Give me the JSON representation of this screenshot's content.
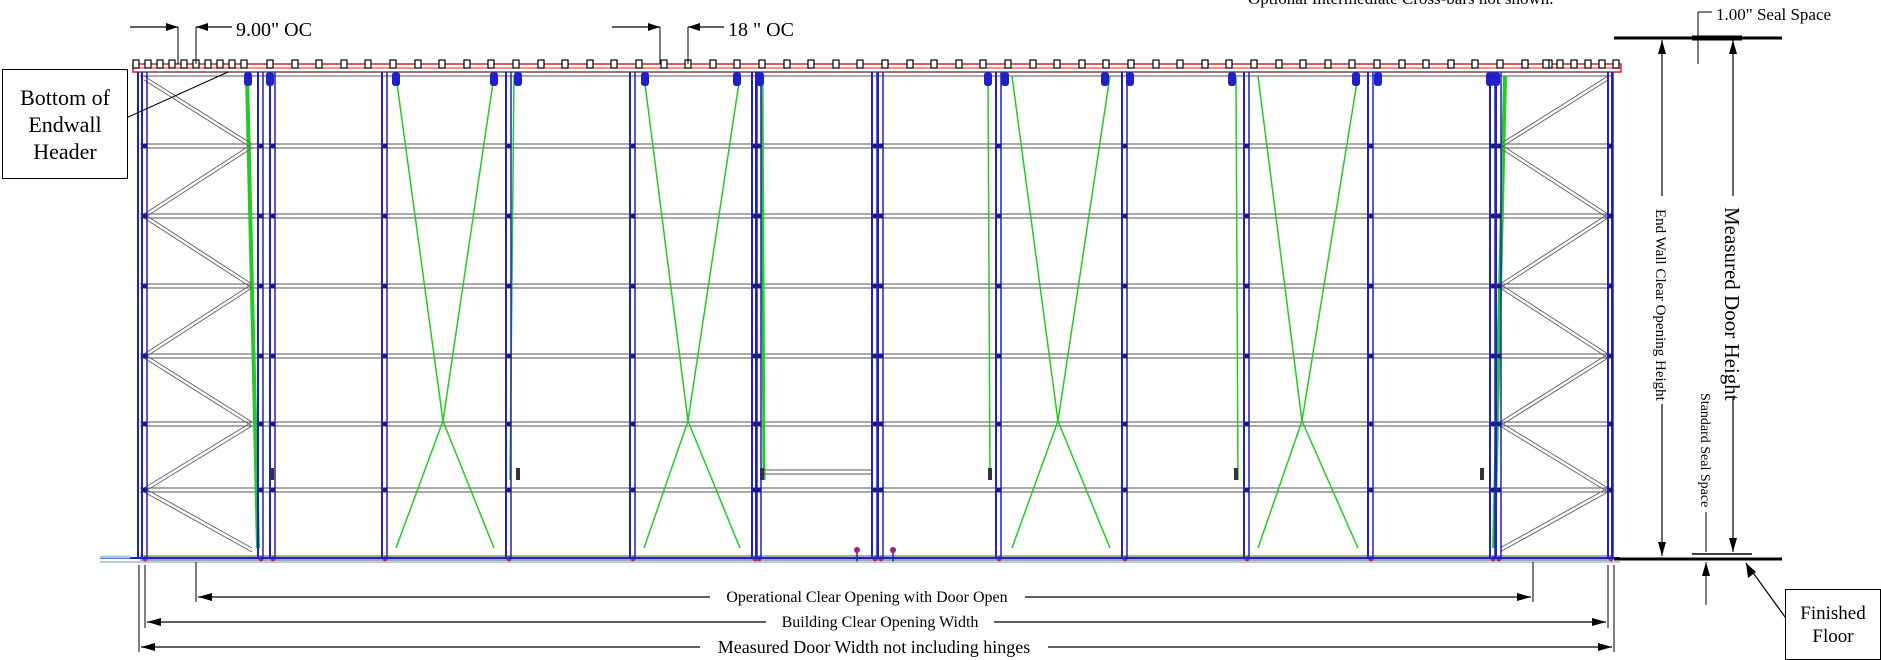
{
  "top_notes": {
    "spacing_9": "9.00\" OC",
    "spacing_18": "18 \" OC",
    "cutoff_note": "Optional Intermediate Cross-bars not shown.",
    "seal_space_top": "1.00\" Seal Space"
  },
  "callouts": {
    "endwall_line1": "Bottom of",
    "endwall_line2": "Endwall",
    "endwall_line3": "Header",
    "floor_line1": "Finished",
    "floor_line2": "Floor"
  },
  "dimensions": {
    "operational": "Operational Clear Opening with Door Open",
    "building": "Building Clear Opening Width",
    "measured_width": "Measured Door Width not including hinges",
    "endwall_height": "End Wall Clear Opening Height",
    "measured_height": "Measured Door Height",
    "standard_seal": "Standard Seal Space"
  },
  "colors": {
    "frame": "#2020c8",
    "brace": "#22cc22",
    "header": "#e02020",
    "rail": "#555555"
  }
}
